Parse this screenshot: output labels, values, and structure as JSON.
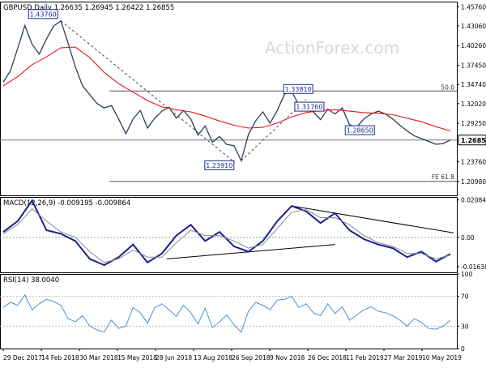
{
  "chart_data": [
    {
      "type": "line",
      "title": "GBPUSD,Daily  1.26635 1.26945 1.26422 1.26855",
      "ylim": [
        1.19,
        1.465
      ],
      "y_ticks": [
        "1.45760",
        "1.43060",
        "1.40260",
        "1.37450",
        "1.34740",
        "1.32020",
        "1.29250",
        "1.26855",
        "1.23760",
        "1.20980"
      ],
      "y_tick_values": [
        1.4576,
        1.4306,
        1.4026,
        1.3745,
        1.3474,
        1.3202,
        1.2925,
        1.26855,
        1.2376,
        1.2098
      ],
      "x_ticks": [
        "29 Dec 2017",
        "14 Feb 2018",
        "30 Mar 2018",
        "15 May 2018",
        "28 Jun 2018",
        "13 Aug 2018",
        "26 Sep 2018",
        "9 Nov 2018",
        "26 Dec 2018",
        "11 Feb 2019",
        "27 Mar 2019",
        "10 May 2019"
      ],
      "grid": false,
      "last_price_label": "1.26855",
      "series": [
        {
          "name": "",
          "color": "#2e3f56",
          "x": [
            0,
            6,
            12,
            18,
            24,
            30,
            36,
            42,
            48,
            54,
            60,
            66,
            72,
            78,
            84,
            90,
            96,
            102,
            108,
            114,
            120,
            126,
            132,
            138,
            144,
            150,
            156,
            162,
            168,
            174,
            180,
            186,
            192,
            198,
            204,
            210,
            216,
            222,
            228,
            234,
            240,
            246,
            252,
            258,
            264,
            270,
            276,
            282,
            288,
            294,
            300,
            306,
            312,
            318,
            324,
            330,
            336,
            342,
            348,
            354,
            360,
            366,
            372
          ],
          "y": [
            1.3505,
            1.367,
            1.3985,
            1.431,
            1.4045,
            1.3905,
            1.412,
            1.4305,
            1.4376,
            1.406,
            1.3725,
            1.3455,
            1.333,
            1.3205,
            1.314,
            1.3175,
            1.2985,
            1.2775,
            1.2985,
            1.3105,
            1.2855,
            1.2995,
            1.3095,
            1.315,
            1.2995,
            1.3105,
            1.2985,
            1.2755,
            1.2885,
            1.2655,
            1.2735,
            1.2621,
            1.2605,
            1.2391,
            1.2765,
            1.2955,
            1.3085,
            1.2925,
            1.3105,
            1.3335,
            1.3381,
            1.3175,
            1.3176,
            1.3085,
            1.2975,
            1.3125,
            1.3055,
            1.3142,
            1.2905,
            1.2865,
            1.2985,
            1.3055,
            1.3096,
            1.3055,
            1.2985,
            1.2895,
            1.2815,
            1.2745,
            1.2705,
            1.2665,
            1.2625,
            1.2635,
            1.26855
          ]
        },
        {
          "name": "",
          "color": "#e8151b",
          "x": [
            0,
            12,
            24,
            36,
            48,
            60,
            72,
            84,
            96,
            108,
            120,
            132,
            144,
            156,
            168,
            180,
            192,
            204,
            216,
            228,
            240,
            252,
            264,
            276,
            288,
            300,
            312,
            324,
            336,
            348,
            360,
            372
          ],
          "y": [
            1.3455,
            1.3585,
            1.3755,
            1.3865,
            1.3995,
            1.4005,
            1.3855,
            1.3645,
            1.3485,
            1.3365,
            1.3245,
            1.3155,
            1.3115,
            1.3085,
            1.3025,
            1.2955,
            1.2895,
            1.2855,
            1.2865,
            1.2925,
            1.3015,
            1.3075,
            1.3105,
            1.3115,
            1.3095,
            1.3075,
            1.3065,
            1.3045,
            1.2995,
            1.2945,
            1.2875,
            1.2815
          ]
        }
      ],
      "annotations": [
        {
          "text": "1.43760",
          "x": 48,
          "y": 1.4376
        },
        {
          "text": "1.33810",
          "x": 240,
          "y": 1.3381
        },
        {
          "text": "1.31760",
          "x": 252,
          "y": 1.3176
        },
        {
          "text": "1.28650",
          "x": 294,
          "y": 1.2865
        },
        {
          "text": "1.23910",
          "x": 198,
          "y": 1.2391
        },
        {
          "text": "50.0",
          "x": 360,
          "y": 1.3381
        },
        {
          "text": "FE 61.8",
          "x": 360,
          "y": 1.2098
        }
      ],
      "levels": [
        {
          "label": "50.0",
          "y": 1.3381
        },
        {
          "label": "FE 61.8",
          "y": 1.2098
        }
      ],
      "watermark": "ActionForex.com"
    },
    {
      "type": "line",
      "title": "MACD(12,26,9) -0.009195 -0.009864",
      "ylim": [
        -0.0195,
        0.0225
      ],
      "y_ticks": [
        "0.020848",
        "0.00",
        "-0.016389"
      ],
      "y_tick_values": [
        0.020848,
        0.0,
        -0.016389
      ],
      "series": [
        {
          "name": "",
          "color": "#1a1f8f",
          "x": [
            0,
            12,
            24,
            36,
            48,
            60,
            72,
            84,
            96,
            108,
            120,
            132,
            144,
            156,
            168,
            180,
            192,
            204,
            216,
            228,
            240,
            252,
            264,
            276,
            288,
            300,
            312,
            324,
            336,
            348,
            360,
            372
          ],
          "y": [
            0.003,
            0.009,
            0.0205,
            0.004,
            0.002,
            -0.002,
            -0.012,
            -0.0155,
            -0.011,
            -0.004,
            -0.014,
            -0.009,
            0.001,
            0.007,
            -0.002,
            0.003,
            -0.005,
            -0.008,
            -0.002,
            0.009,
            0.0175,
            0.0145,
            0.008,
            0.0135,
            0.004,
            -0.001,
            -0.004,
            -0.006,
            -0.011,
            -0.008,
            -0.0135,
            -0.0092
          ]
        },
        {
          "name": "",
          "color": "#8a8a8a",
          "x": [
            0,
            12,
            24,
            36,
            48,
            60,
            72,
            84,
            96,
            108,
            120,
            132,
            144,
            156,
            168,
            180,
            192,
            204,
            216,
            228,
            240,
            252,
            264,
            276,
            288,
            300,
            312,
            324,
            336,
            348,
            360,
            372
          ],
          "y": [
            0.002,
            0.007,
            0.016,
            0.009,
            0.003,
            0.0,
            -0.008,
            -0.014,
            -0.012,
            -0.007,
            -0.011,
            -0.011,
            -0.003,
            0.004,
            0.001,
            0.001,
            -0.002,
            -0.006,
            -0.004,
            0.005,
            0.014,
            0.0155,
            0.011,
            0.011,
            0.007,
            0.001,
            -0.003,
            -0.005,
            -0.009,
            -0.009,
            -0.012,
            -0.0099
          ]
        }
      ]
    },
    {
      "type": "line",
      "title": "RSI(14) 38.0040",
      "ylim": [
        0,
        100
      ],
      "y_ticks": [
        "100",
        "70",
        "30",
        "0"
      ],
      "y_tick_values": [
        100,
        70,
        30,
        0
      ],
      "series": [
        {
          "name": "",
          "color": "#4a90d9",
          "x": [
            0,
            6,
            12,
            18,
            24,
            30,
            36,
            42,
            48,
            54,
            60,
            66,
            72,
            78,
            84,
            90,
            96,
            102,
            108,
            114,
            120,
            126,
            132,
            138,
            144,
            150,
            156,
            162,
            168,
            174,
            180,
            186,
            192,
            198,
            204,
            210,
            216,
            222,
            228,
            234,
            240,
            246,
            252,
            258,
            264,
            270,
            276,
            282,
            288,
            294,
            300,
            306,
            312,
            318,
            324,
            330,
            336,
            342,
            348,
            354,
            360,
            366,
            372
          ],
          "y": [
            55,
            62,
            58,
            72,
            52,
            60,
            66,
            63,
            58,
            40,
            36,
            44,
            30,
            25,
            22,
            38,
            27,
            30,
            55,
            48,
            34,
            55,
            60,
            52,
            43,
            58,
            48,
            33,
            54,
            28,
            36,
            45,
            32,
            22,
            50,
            62,
            58,
            52,
            65,
            66,
            70,
            55,
            60,
            48,
            44,
            60,
            47,
            56,
            38,
            45,
            52,
            56,
            50,
            48,
            44,
            38,
            30,
            40,
            35,
            27,
            26,
            30,
            38
          ]
        }
      ]
    },
    {
      "type": "text",
      "x_ticks": [
        "29 Dec 2017",
        "14 Feb 2018",
        "30 Mar 2018",
        "15 May 2018",
        "28 Jun 2018",
        "13 Aug 2018",
        "26 Sep 2018",
        "9 Nov 2018",
        "26 Dec 2018",
        "11 Feb 2019",
        "27 Mar 2019",
        "10 May 2019"
      ]
    }
  ]
}
